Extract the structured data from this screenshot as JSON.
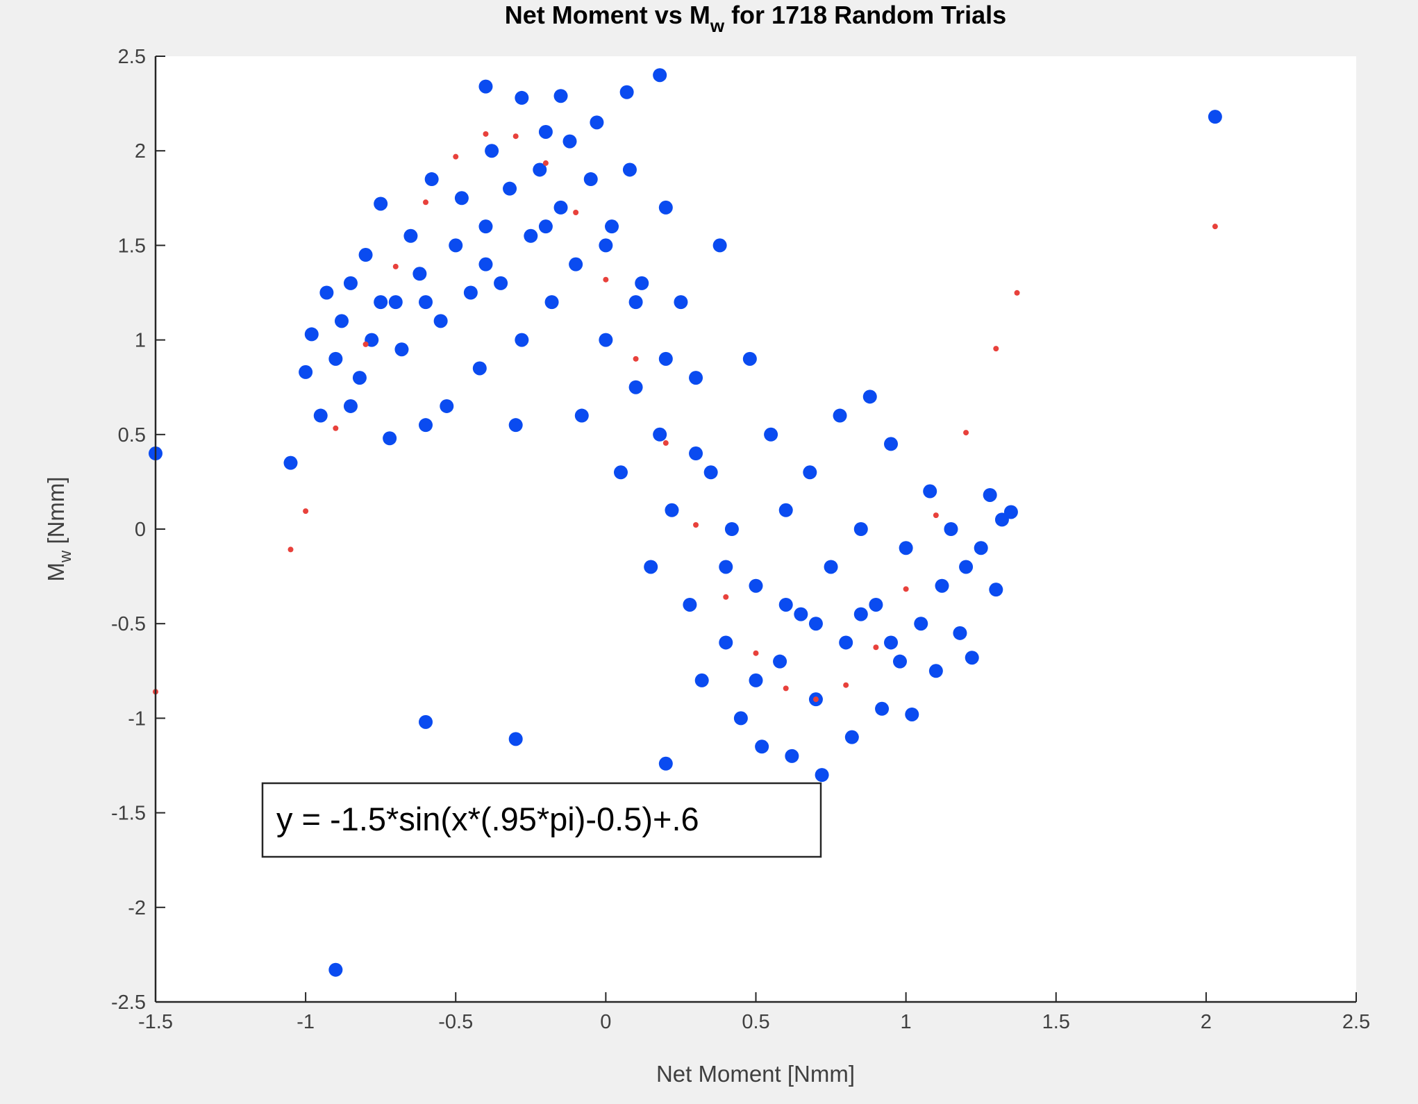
{
  "chart_data": {
    "type": "scatter",
    "title": [
      "Net Moment vs M",
      "w",
      " for 1718 Random Trials"
    ],
    "xlabel": "Net Moment [Nmm]",
    "ylabel": [
      "M",
      "w",
      " [Nmm]"
    ],
    "annotation": "y = -1.5*sin(x*(.95*pi)-0.5)+.6",
    "xlim": [
      -1.5,
      2.5
    ],
    "ylim": [
      -2.5,
      2.5
    ],
    "xticks": [
      -1.5,
      -1,
      -0.5,
      0,
      0.5,
      1,
      1.5,
      2,
      2.5
    ],
    "yticks": [
      -2.5,
      -2,
      -1.5,
      -1,
      -0.5,
      0,
      0.5,
      1,
      1.5,
      2,
      2.5
    ],
    "series": [
      {
        "color": "#0a4bf0",
        "marker_size": "large",
        "x": [
          -1.5,
          2.03,
          -0.9,
          -0.6,
          -0.3,
          0.2,
          -0.4,
          0.18,
          0.07,
          -0.28,
          -0.15,
          -1.05,
          -1.0,
          -0.98,
          -0.95,
          -0.93,
          -0.9,
          -0.88,
          -0.85,
          -0.85,
          -0.82,
          -0.8,
          -0.78,
          -0.75,
          -0.72,
          -0.7,
          -0.68,
          -0.65,
          -0.62,
          -0.6,
          -0.58,
          -0.55,
          -0.53,
          -0.5,
          -0.48,
          -0.45,
          -0.42,
          -0.4,
          -0.38,
          -0.35,
          -0.32,
          -0.3,
          -0.28,
          -0.25,
          -0.22,
          -0.2,
          -0.18,
          -0.15,
          -0.12,
          -0.1,
          -0.08,
          -0.05,
          -0.03,
          0,
          0.02,
          0.05,
          0.08,
          0.1,
          0.12,
          0.15,
          0.18,
          0.2,
          0.22,
          0.25,
          0.28,
          0.3,
          0.32,
          0.35,
          0.38,
          0.4,
          0.42,
          0.45,
          0.48,
          0.5,
          0.52,
          0.55,
          0.58,
          0.6,
          0.62,
          0.65,
          0.68,
          0.7,
          0.72,
          0.75,
          0.78,
          0.8,
          0.82,
          0.85,
          0.88,
          0.9,
          0.92,
          0.95,
          0.98,
          1.0,
          1.02,
          1.05,
          1.08,
          1.1,
          1.12,
          1.15,
          1.18,
          1.2,
          1.22,
          1.25,
          1.28,
          1.3,
          1.32,
          1.35,
          0.6,
          0.7,
          0.85,
          0.95,
          0.5,
          0.4,
          0.3,
          0.2,
          0.1,
          0,
          -0.2,
          -0.4,
          -0.6,
          -0.75
        ],
        "values": [
          0.4,
          2.18,
          -2.33,
          -1.02,
          -1.11,
          -1.24,
          2.34,
          2.4,
          2.31,
          2.28,
          2.29,
          0.35,
          0.83,
          1.03,
          0.6,
          1.25,
          0.9,
          1.1,
          0.65,
          1.3,
          0.8,
          1.45,
          1.0,
          1.72,
          0.48,
          1.2,
          0.95,
          1.55,
          1.35,
          0.55,
          1.85,
          1.1,
          0.65,
          1.5,
          1.75,
          1.25,
          0.85,
          1.6,
          2.0,
          1.3,
          1.8,
          0.55,
          1.0,
          1.55,
          1.9,
          2.1,
          1.2,
          1.7,
          2.05,
          1.4,
          0.6,
          1.85,
          2.15,
          1.0,
          1.6,
          0.3,
          1.9,
          0.75,
          1.3,
          -0.2,
          0.5,
          1.7,
          0.1,
          1.2,
          -0.4,
          0.8,
          -0.8,
          0.3,
          1.5,
          -0.6,
          0.0,
          -1.0,
          0.9,
          -0.3,
          -1.15,
          0.5,
          -0.7,
          0.1,
          -1.2,
          -0.45,
          0.3,
          -0.9,
          -1.3,
          -0.2,
          0.6,
          -0.6,
          -1.1,
          0.0,
          0.7,
          -0.4,
          -0.95,
          0.45,
          -0.7,
          -0.1,
          -0.98,
          -0.5,
          0.2,
          -0.75,
          -0.3,
          0.0,
          -0.55,
          -0.2,
          -0.68,
          -0.1,
          0.18,
          -0.32,
          0.05,
          0.09,
          -0.4,
          -0.5,
          -0.45,
          -0.6,
          -0.8,
          -0.2,
          0.4,
          0.9,
          1.2,
          1.5,
          1.6,
          1.4,
          1.2,
          1.2
        ]
      },
      {
        "color": "#e8413b",
        "marker_size": "small",
        "x": [
          -1.5,
          -1.05,
          -1.0,
          -0.9,
          -0.8,
          -0.7,
          -0.6,
          -0.5,
          -0.4,
          -0.3,
          -0.2,
          -0.1,
          0,
          0.1,
          0.2,
          0.3,
          0.4,
          0.5,
          0.6,
          0.7,
          0.8,
          0.9,
          1.0,
          1.1,
          1.2,
          1.3,
          1.37,
          2.03
        ],
        "values": [
          -0.86,
          -0.108,
          0.095,
          0.533,
          0.977,
          1.388,
          1.728,
          1.969,
          2.089,
          2.077,
          1.935,
          1.674,
          1.319,
          0.9,
          0.455,
          0.022,
          -0.359,
          -0.656,
          -0.842,
          -0.9,
          -0.825,
          -0.625,
          -0.317,
          0.073,
          0.51,
          0.954,
          1.249,
          1.6
        ]
      }
    ]
  }
}
